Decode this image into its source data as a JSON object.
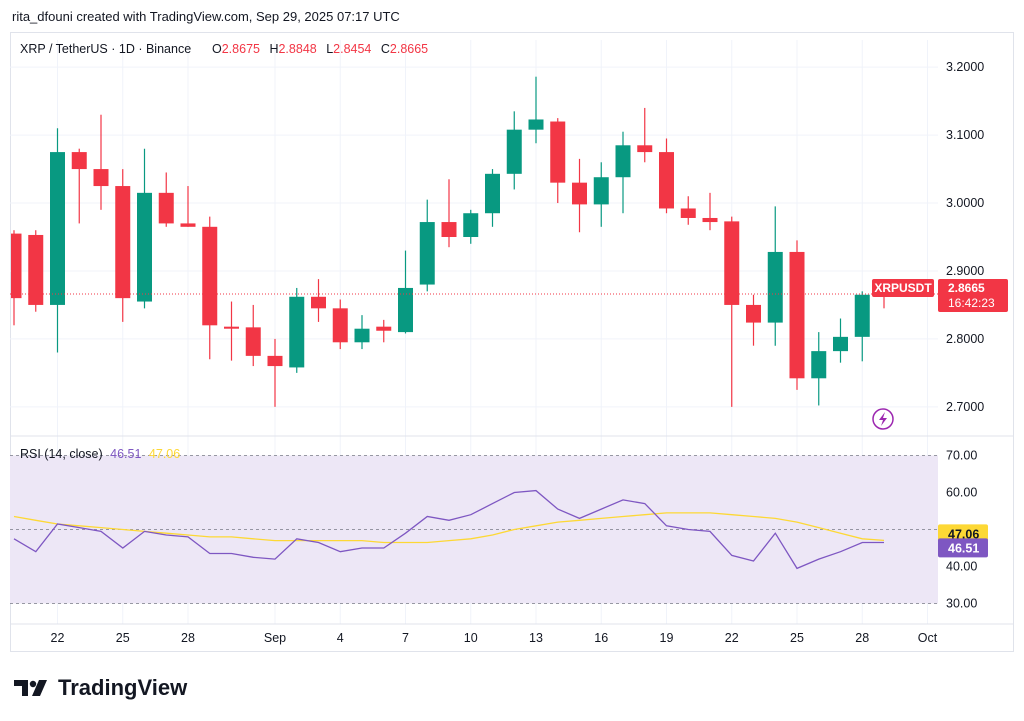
{
  "header": {
    "attribution": "rita_dfouni created with TradingView.com, Sep 29, 2025 07:17 UTC"
  },
  "legend": {
    "symbol": "XRP / TetherUS · 1D · Binance",
    "o_label": "O",
    "o_value": "2.8675",
    "h_label": "H",
    "h_value": "2.8848",
    "l_label": "L",
    "l_value": "2.8454",
    "c_label": "C",
    "c_value": "2.8665"
  },
  "price_badge": {
    "ticker": "XRPUSDT",
    "price": "2.8665",
    "countdown": "16:42:23"
  },
  "rsi_legend": {
    "label": "RSI (14, close)",
    "value1": "46.51",
    "value2": "47.06"
  },
  "rsi_badges": {
    "ma": "47.06",
    "rsi": "46.51"
  },
  "footer": {
    "brand": "TradingView"
  },
  "colors": {
    "up": "#089981",
    "down": "#f23645",
    "rsi_line": "#7e57c2",
    "rsi_ma": "#fdd835",
    "rsi_band": "#ede7f6",
    "text": "#131722"
  },
  "chart_data": [
    {
      "type": "candlestick",
      "title": "XRP / TetherUS · 1D · Binance",
      "ylim": [
        2.66,
        3.24
      ],
      "y_ticks": [
        "3.2000",
        "3.1000",
        "3.0000",
        "2.9000",
        "2.8000",
        "2.7000"
      ],
      "x_ticks": [
        {
          "label": "22",
          "i": 2
        },
        {
          "label": "25",
          "i": 5
        },
        {
          "label": "28",
          "i": 8
        },
        {
          "label": "Sep",
          "i": 12
        },
        {
          "label": "4",
          "i": 15
        },
        {
          "label": "7",
          "i": 18
        },
        {
          "label": "10",
          "i": 21
        },
        {
          "label": "13",
          "i": 24
        },
        {
          "label": "16",
          "i": 27
        },
        {
          "label": "19",
          "i": 30
        },
        {
          "label": "22",
          "i": 33
        },
        {
          "label": "25",
          "i": 36
        },
        {
          "label": "28",
          "i": 39
        },
        {
          "label": "Oct",
          "i": 42
        }
      ],
      "candles": [
        {
          "o": 2.955,
          "h": 2.96,
          "l": 2.82,
          "c": 2.86
        },
        {
          "o": 2.953,
          "h": 2.96,
          "l": 2.84,
          "c": 2.85
        },
        {
          "o": 2.85,
          "h": 3.11,
          "l": 2.78,
          "c": 3.075
        },
        {
          "o": 3.075,
          "h": 3.08,
          "l": 2.97,
          "c": 3.05
        },
        {
          "o": 3.05,
          "h": 3.13,
          "l": 2.99,
          "c": 3.025
        },
        {
          "o": 3.025,
          "h": 3.05,
          "l": 2.825,
          "c": 2.86
        },
        {
          "o": 2.855,
          "h": 3.08,
          "l": 2.845,
          "c": 3.015
        },
        {
          "o": 3.015,
          "h": 3.045,
          "l": 2.965,
          "c": 2.97
        },
        {
          "o": 2.97,
          "h": 3.025,
          "l": 2.965,
          "c": 2.965
        },
        {
          "o": 2.965,
          "h": 2.98,
          "l": 2.77,
          "c": 2.82
        },
        {
          "o": 2.818,
          "h": 2.855,
          "l": 2.768,
          "c": 2.815
        },
        {
          "o": 2.817,
          "h": 2.85,
          "l": 2.76,
          "c": 2.775
        },
        {
          "o": 2.775,
          "h": 2.8,
          "l": 2.7,
          "c": 2.76
        },
        {
          "o": 2.758,
          "h": 2.875,
          "l": 2.75,
          "c": 2.862
        },
        {
          "o": 2.862,
          "h": 2.888,
          "l": 2.825,
          "c": 2.845
        },
        {
          "o": 2.845,
          "h": 2.858,
          "l": 2.785,
          "c": 2.795
        },
        {
          "o": 2.795,
          "h": 2.835,
          "l": 2.785,
          "c": 2.815
        },
        {
          "o": 2.818,
          "h": 2.828,
          "l": 2.795,
          "c": 2.812
        },
        {
          "o": 2.81,
          "h": 2.93,
          "l": 2.808,
          "c": 2.875
        },
        {
          "o": 2.88,
          "h": 3.005,
          "l": 2.87,
          "c": 2.972
        },
        {
          "o": 2.972,
          "h": 3.035,
          "l": 2.935,
          "c": 2.95
        },
        {
          "o": 2.95,
          "h": 2.99,
          "l": 2.94,
          "c": 2.985
        },
        {
          "o": 2.985,
          "h": 3.05,
          "l": 2.965,
          "c": 3.043
        },
        {
          "o": 3.043,
          "h": 3.135,
          "l": 3.02,
          "c": 3.108
        },
        {
          "o": 3.108,
          "h": 3.186,
          "l": 3.088,
          "c": 3.123
        },
        {
          "o": 3.12,
          "h": 3.125,
          "l": 3.0,
          "c": 3.03
        },
        {
          "o": 3.03,
          "h": 3.065,
          "l": 2.957,
          "c": 2.998
        },
        {
          "o": 2.998,
          "h": 3.06,
          "l": 2.965,
          "c": 3.038
        },
        {
          "o": 3.038,
          "h": 3.105,
          "l": 2.985,
          "c": 3.085
        },
        {
          "o": 3.085,
          "h": 3.14,
          "l": 3.06,
          "c": 3.075
        },
        {
          "o": 3.075,
          "h": 3.095,
          "l": 2.985,
          "c": 2.992
        },
        {
          "o": 2.992,
          "h": 3.01,
          "l": 2.968,
          "c": 2.978
        },
        {
          "o": 2.978,
          "h": 3.015,
          "l": 2.96,
          "c": 2.972
        },
        {
          "o": 2.973,
          "h": 2.98,
          "l": 2.7,
          "c": 2.85
        },
        {
          "o": 2.85,
          "h": 2.865,
          "l": 2.79,
          "c": 2.824
        },
        {
          "o": 2.824,
          "h": 2.995,
          "l": 2.79,
          "c": 2.928
        },
        {
          "o": 2.928,
          "h": 2.945,
          "l": 2.725,
          "c": 2.742
        },
        {
          "o": 2.742,
          "h": 2.81,
          "l": 2.702,
          "c": 2.782
        },
        {
          "o": 2.782,
          "h": 2.83,
          "l": 2.765,
          "c": 2.803
        },
        {
          "o": 2.803,
          "h": 2.87,
          "l": 2.767,
          "c": 2.865
        },
        {
          "o": 2.868,
          "h": 2.885,
          "l": 2.845,
          "c": 2.866
        }
      ]
    },
    {
      "type": "line",
      "title": "RSI (14, close)",
      "ylim": [
        25,
        75
      ],
      "y_ticks": [
        "70.00",
        "60.00",
        "40.00",
        "30.00"
      ],
      "bands": [
        70,
        50,
        30
      ],
      "series": [
        {
          "name": "RSI",
          "values": [
            47.5,
            44,
            51.5,
            50.5,
            49.5,
            45,
            49.5,
            48.5,
            48,
            43.5,
            43.5,
            42.5,
            42,
            47.5,
            46.5,
            44,
            45,
            45,
            49,
            53.5,
            52.5,
            54,
            57,
            60,
            60.5,
            55.5,
            53,
            55.5,
            58,
            57,
            51,
            50,
            49.5,
            43,
            41.5,
            49,
            39.5,
            42,
            44,
            46.5,
            46.5
          ]
        },
        {
          "name": "RSI-based MA",
          "values": [
            53.5,
            52.5,
            51.5,
            51,
            50.5,
            50,
            49.5,
            49,
            48.5,
            48,
            48,
            47.5,
            47,
            47,
            47,
            47,
            47,
            46.5,
            46.5,
            46.5,
            47,
            47.5,
            48.5,
            50,
            51,
            52,
            52.5,
            53,
            53.5,
            54,
            54.5,
            54.5,
            54.5,
            54,
            53.5,
            53,
            52,
            50.5,
            49,
            47.5,
            47.06
          ]
        }
      ]
    }
  ]
}
